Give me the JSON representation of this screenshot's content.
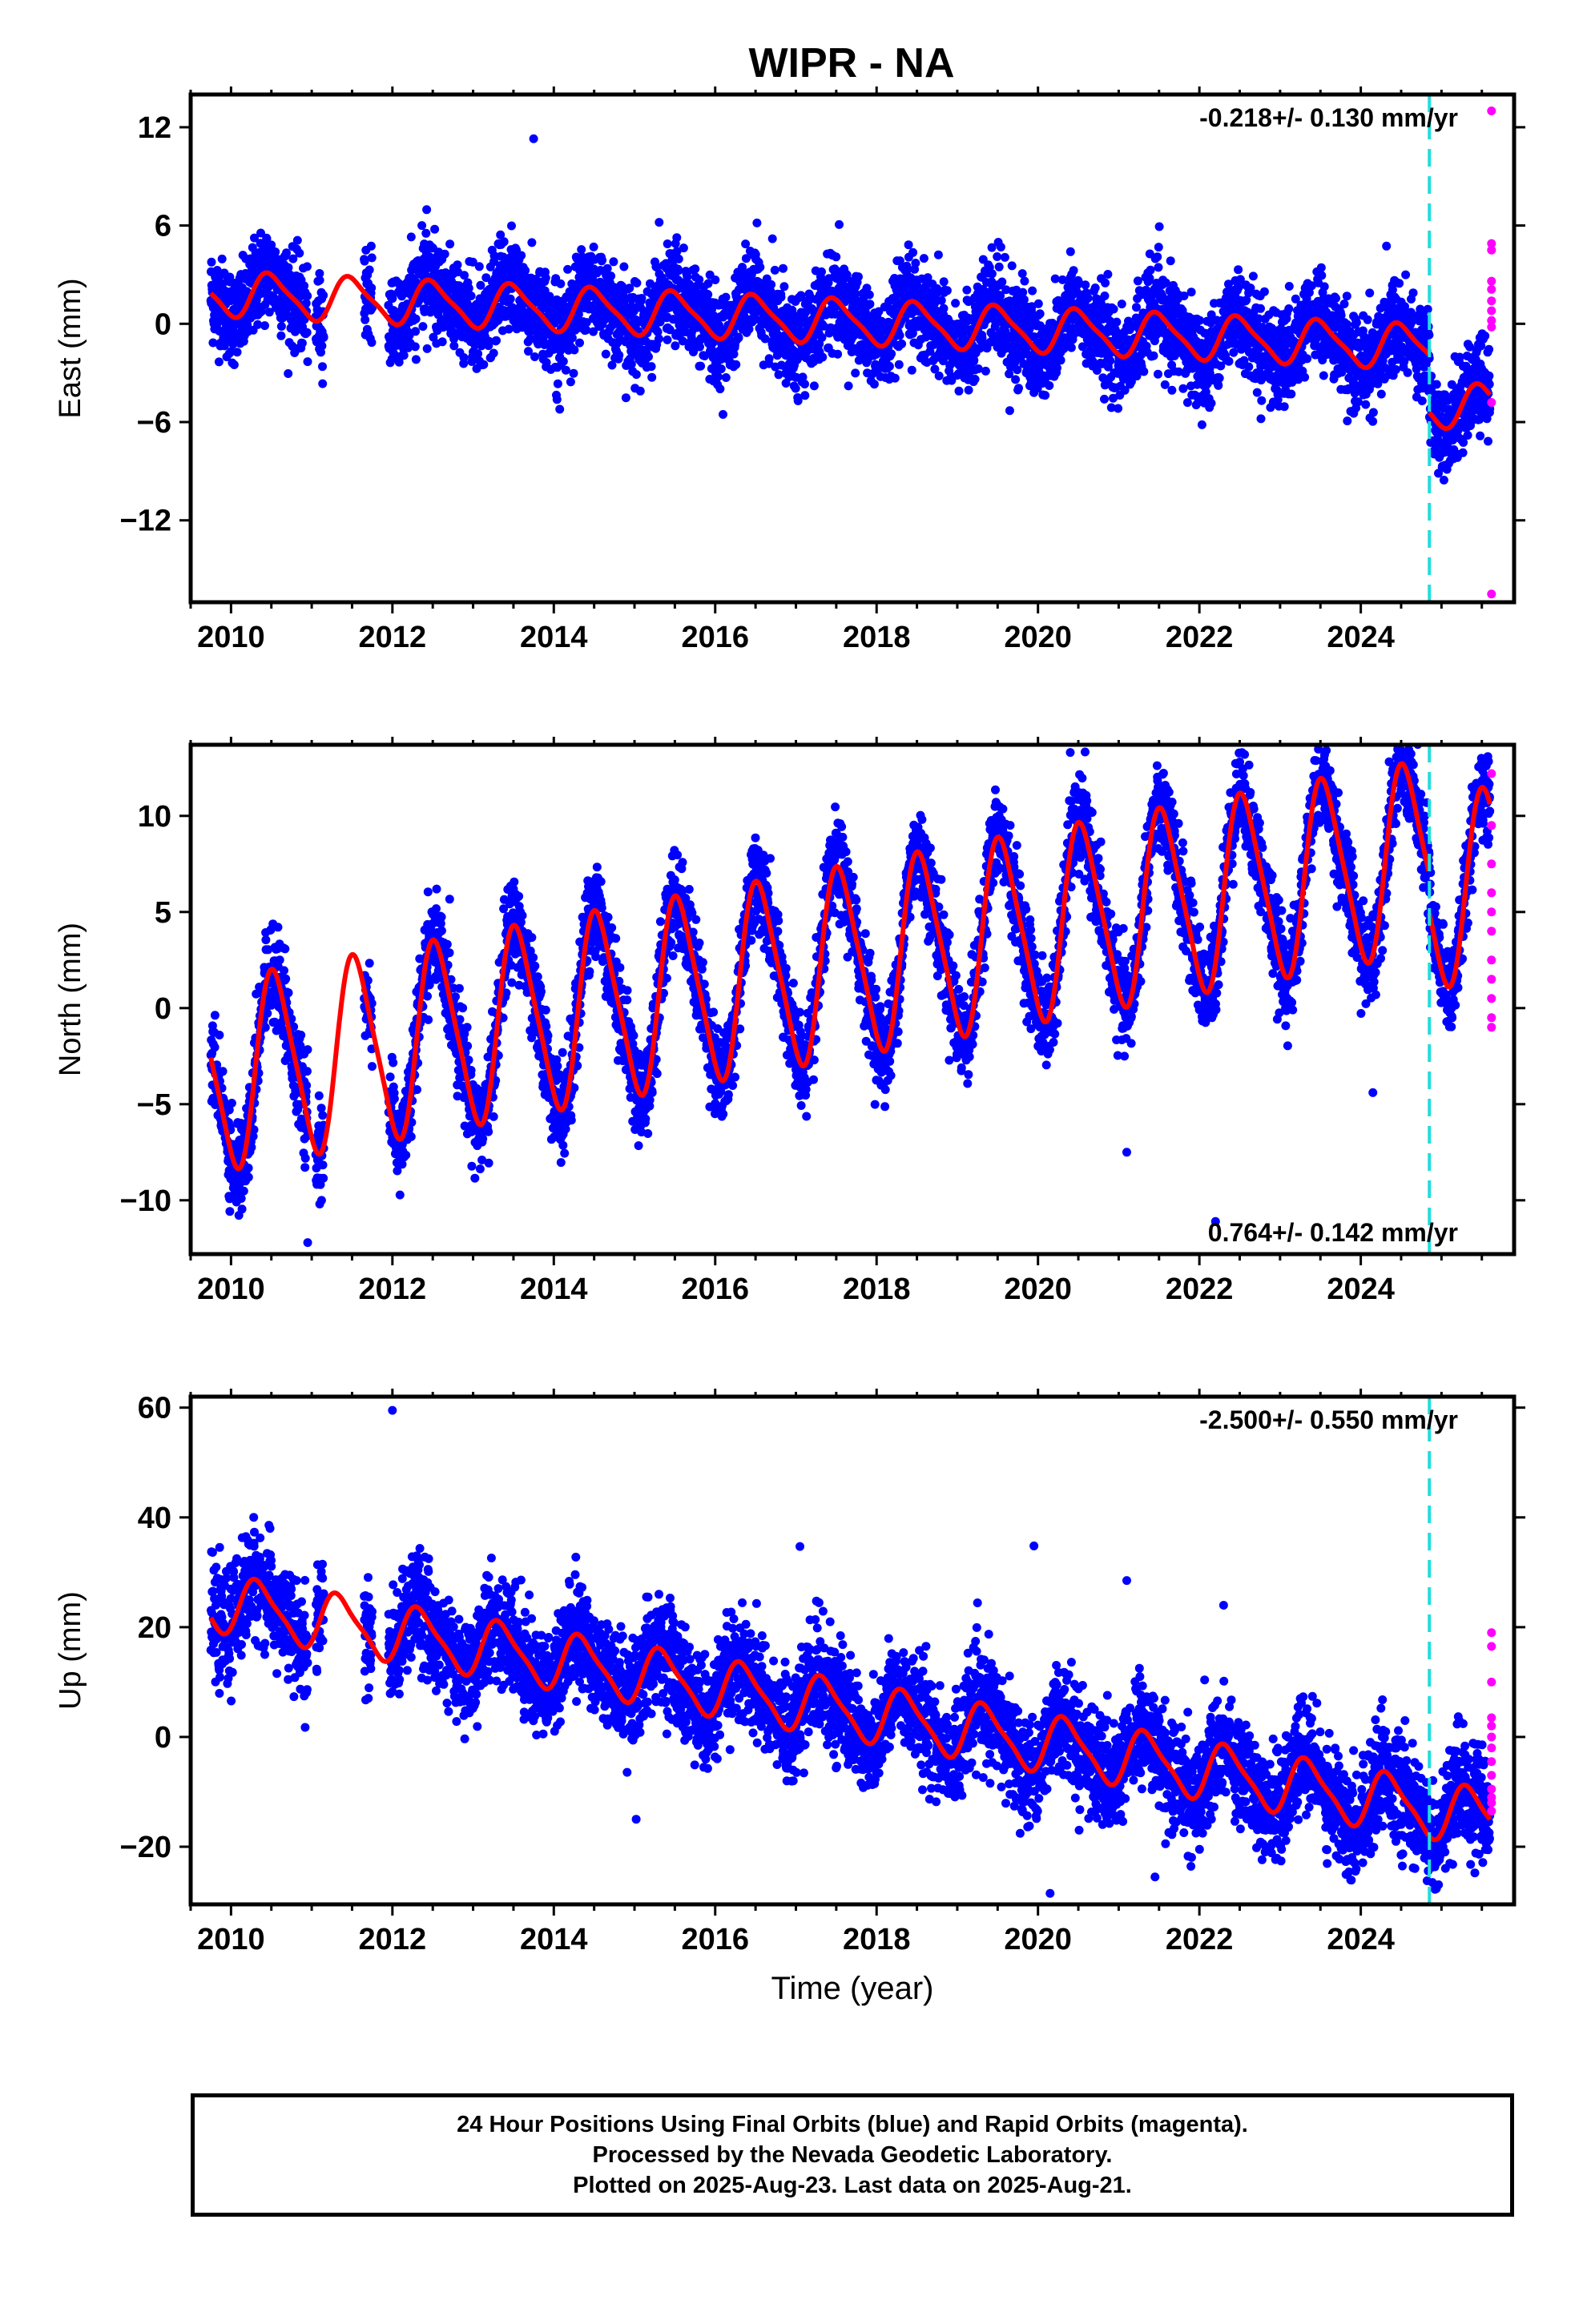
{
  "title": "WIPR - NA",
  "colors": {
    "final_orbits": "#0000ff",
    "rapid_orbits": "#ff00ff",
    "model_fit": "#ff0000",
    "event_line": "#22dddd",
    "frame": "#000000"
  },
  "footer": {
    "line1": "24 Hour Positions Using Final Orbits (blue) and Rapid Orbits (magenta).",
    "line2": "Processed by the Nevada Geodetic Laboratory.",
    "line3": "Plotted on 2025-Aug-23. Last data on 2025-Aug-21."
  },
  "chart_data": [
    {
      "type": "scatter",
      "component": "east",
      "ylabel": "East (mm)",
      "xlabel": "",
      "xlim": [
        2009.5,
        2025.9
      ],
      "ylim": [
        -17,
        14
      ],
      "xticks": [
        2010,
        2012,
        2014,
        2016,
        2018,
        2020,
        2022,
        2024
      ],
      "yticks": [
        12,
        6,
        0,
        -6,
        -12
      ],
      "ytick_labels": [
        "12",
        "6",
        "0",
        "−6",
        "−12"
      ],
      "rate_label": "-0.218+/- 0.130 mm/yr",
      "rate_label_position": "top-right",
      "event_line_x": 2024.85,
      "fit": {
        "trend_mm_per_yr": -0.218,
        "intercept_mm": 1.8,
        "annual_amp_mm": 1.3,
        "annual_phase": 0.25,
        "semiannual_amp_mm": 0.3,
        "offset_at_event_mm": -3.5
      },
      "scatter_sd_mm": 1.4,
      "rapid_orbits_y": [
        13,
        4.9,
        4.5,
        2.6,
        2.1,
        1.4,
        0.8,
        0.2,
        -0.2,
        -4.8,
        -16.5
      ],
      "outliers": [
        {
          "x": 2013.75,
          "y": 11.3
        },
        {
          "x": 2019.65,
          "y": -5.3
        },
        {
          "x": 2019.95,
          "y": -4.2
        }
      ],
      "data_gaps": [
        [
          2010.95,
          2011.05
        ],
        [
          2011.15,
          2011.65
        ],
        [
          2011.75,
          2011.95
        ]
      ]
    },
    {
      "type": "scatter",
      "component": "north",
      "ylabel": "North (mm)",
      "xlabel": "",
      "xlim": [
        2009.5,
        2025.9
      ],
      "ylim": [
        -12.8,
        13.7
      ],
      "xticks": [
        2010,
        2012,
        2014,
        2016,
        2018,
        2020,
        2022,
        2024
      ],
      "yticks": [
        10,
        5,
        0,
        -5,
        -10
      ],
      "ytick_labels": [
        "10",
        "5",
        "0",
        "−5",
        "−10"
      ],
      "rate_label": "0.764+/- 0.142 mm/yr",
      "rate_label_position": "bottom-right",
      "event_line_x": 2024.85,
      "fit": {
        "trend_mm_per_yr": 0.764,
        "intercept_mm": -3.4,
        "annual_amp_mm": 4.8,
        "annual_phase": 0.3,
        "semiannual_amp_mm": 0.8,
        "offset_at_event_mm": -2.0
      },
      "scatter_sd_mm": 1.2,
      "rapid_orbits_y": [
        12.2,
        9.5,
        7.5,
        6.0,
        5.0,
        4.0,
        2.5,
        1.5,
        0.5,
        -0.5,
        -1.0
      ],
      "outliers": [
        {
          "x": 2020.4,
          "y": 13.3
        },
        {
          "x": 2010.95,
          "y": -12.2
        },
        {
          "x": 2021.1,
          "y": -7.5
        },
        {
          "x": 2024.15,
          "y": -4.4
        },
        {
          "x": 2022.2,
          "y": -11.1
        }
      ],
      "data_gaps": [
        [
          2010.95,
          2011.05
        ],
        [
          2011.15,
          2011.65
        ],
        [
          2011.75,
          2011.95
        ]
      ]
    },
    {
      "type": "scatter",
      "component": "up",
      "ylabel": "Up (mm)",
      "xlabel": "Time (year)",
      "xlim": [
        2009.5,
        2025.9
      ],
      "ylim": [
        -30.5,
        62
      ],
      "xticks": [
        2010,
        2012,
        2014,
        2016,
        2018,
        2020,
        2022,
        2024
      ],
      "yticks": [
        60,
        40,
        20,
        0,
        -20
      ],
      "ytick_labels": [
        "60",
        "40",
        "20",
        "0",
        "−20"
      ],
      "rate_label": "-2.500+/- 0.550 mm/yr",
      "rate_label_position": "top-right",
      "event_line_x": 2024.85,
      "fit": {
        "trend_mm_per_yr": -2.5,
        "intercept_mm": 24,
        "annual_amp_mm": 5.0,
        "annual_phase": 0.1,
        "semiannual_amp_mm": 1.2,
        "offset_at_event_mm": 0
      },
      "scatter_sd_mm": 4.8,
      "rapid_orbits_y": [
        19,
        16.5,
        10,
        3.5,
        2,
        0,
        -2,
        -4.5,
        -7,
        -9.5,
        -11,
        -12,
        -13.5
      ],
      "outliers": [
        {
          "x": 2012.0,
          "y": 59.5
        },
        {
          "x": 2017.05,
          "y": 34.7
        },
        {
          "x": 2019.95,
          "y": 34.8
        },
        {
          "x": 2021.1,
          "y": 28.5
        },
        {
          "x": 2022.3,
          "y": 24.0
        },
        {
          "x": 2020.15,
          "y": -28.5
        },
        {
          "x": 2021.45,
          "y": -25.5
        }
      ],
      "data_gaps": [
        [
          2010.95,
          2011.05
        ],
        [
          2011.15,
          2011.65
        ],
        [
          2011.75,
          2011.95
        ]
      ]
    }
  ]
}
